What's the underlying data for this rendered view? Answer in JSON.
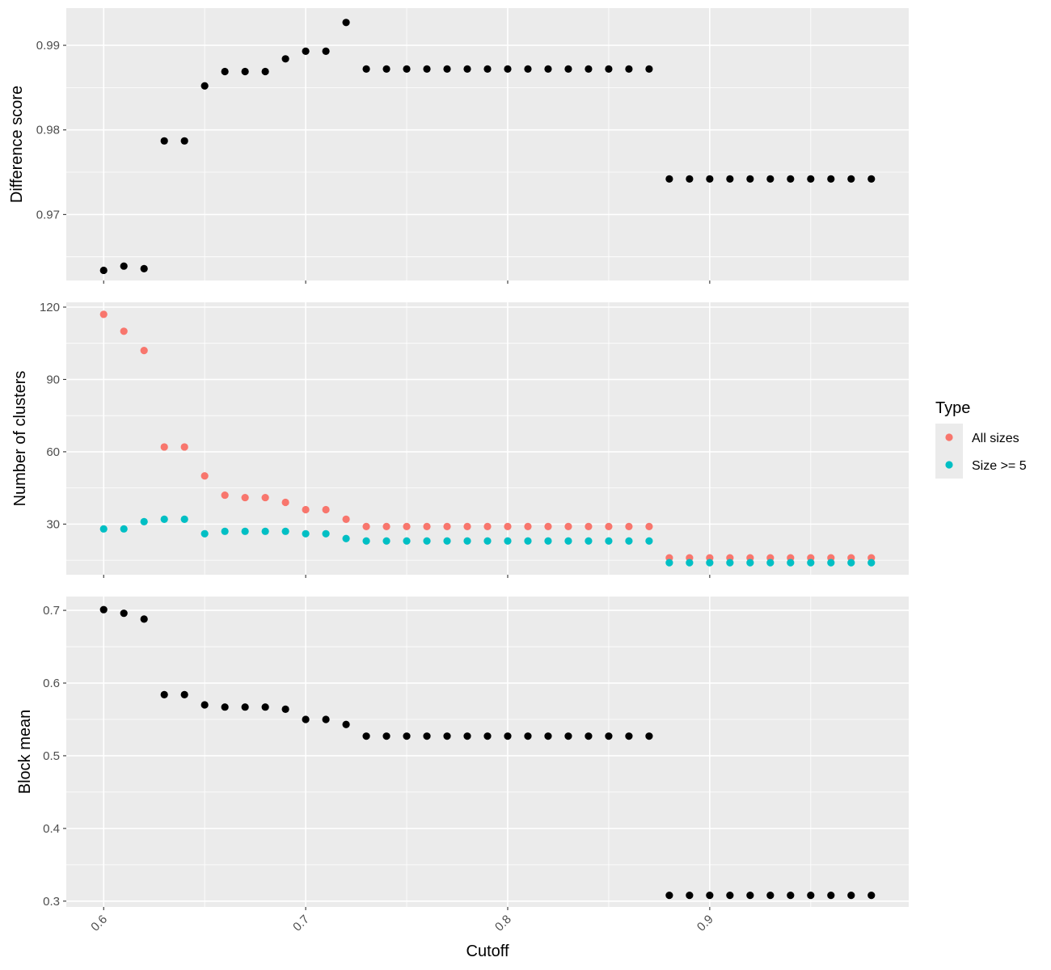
{
  "chart_data": {
    "type": "scatter",
    "xlabel": "Cutoff",
    "x": [
      0.6,
      0.61,
      0.62,
      0.63,
      0.64,
      0.65,
      0.66,
      0.67,
      0.68,
      0.69,
      0.7,
      0.71,
      0.72,
      0.73,
      0.74,
      0.75,
      0.76,
      0.77,
      0.78,
      0.79,
      0.8,
      0.81,
      0.82,
      0.83,
      0.84,
      0.85,
      0.86,
      0.87,
      0.88,
      0.89,
      0.9,
      0.91,
      0.92,
      0.93,
      0.94,
      0.95,
      0.96,
      0.97,
      0.98
    ],
    "xlim": [
      0.5815,
      0.9985
    ],
    "x_ticks": [
      0.6,
      0.7,
      0.8,
      0.9
    ],
    "x_tick_labels": [
      "0.6",
      "0.7",
      "0.8",
      "0.9"
    ],
    "grid": true,
    "legend": {
      "title": "Type",
      "position": "right",
      "items": [
        {
          "label": "All sizes",
          "color": "#F8766D"
        },
        {
          "label": "Size >= 5",
          "color": "#00BFC4"
        }
      ]
    },
    "panels": [
      {
        "ylabel": "Difference score",
        "ylim": [
          0.9622,
          0.9944
        ],
        "y_ticks": [
          0.97,
          0.98,
          0.99
        ],
        "y_tick_labels": [
          "0.97",
          "0.98",
          "0.99"
        ],
        "series": [
          {
            "color": "#000000",
            "values": [
              0.9634,
              0.9639,
              0.9636,
              0.9787,
              0.9787,
              0.9852,
              0.9869,
              0.9869,
              0.9869,
              0.9884,
              0.9893,
              0.9893,
              0.9927,
              0.9872,
              0.9872,
              0.9872,
              0.9872,
              0.9872,
              0.9872,
              0.9872,
              0.9872,
              0.9872,
              0.9872,
              0.9872,
              0.9872,
              0.9872,
              0.9872,
              0.9872,
              0.9742,
              0.9742,
              0.9742,
              0.9742,
              0.9742,
              0.9742,
              0.9742,
              0.9742,
              0.9742,
              0.9742,
              0.9742
            ]
          }
        ]
      },
      {
        "ylabel": "Number of clusters",
        "ylim": [
          9,
          122
        ],
        "y_ticks": [
          30,
          60,
          90,
          120
        ],
        "y_tick_labels": [
          "30",
          "60",
          "90",
          "120"
        ],
        "series": [
          {
            "name": "All sizes",
            "color": "#F8766D",
            "values": [
              117,
              110,
              102,
              62,
              62,
              50,
              42,
              41,
              41,
              39,
              36,
              36,
              32,
              29,
              29,
              29,
              29,
              29,
              29,
              29,
              29,
              29,
              29,
              29,
              29,
              29,
              29,
              29,
              16,
              16,
              16,
              16,
              16,
              16,
              16,
              16,
              16,
              16,
              16
            ]
          },
          {
            "name": "Size >= 5",
            "color": "#00BFC4",
            "values": [
              28,
              28,
              31,
              32,
              32,
              26,
              27,
              27,
              27,
              27,
              26,
              26,
              24,
              23,
              23,
              23,
              23,
              23,
              23,
              23,
              23,
              23,
              23,
              23,
              23,
              23,
              23,
              23,
              14,
              14,
              14,
              14,
              14,
              14,
              14,
              14,
              14,
              14,
              14
            ]
          }
        ]
      },
      {
        "ylabel": "Block mean",
        "ylim": [
          0.292,
          0.719
        ],
        "y_ticks": [
          0.3,
          0.4,
          0.5,
          0.6,
          0.7
        ],
        "y_tick_labels": [
          "0.3",
          "0.4",
          "0.5",
          "0.6",
          "0.7"
        ],
        "series": [
          {
            "color": "#000000",
            "values": [
              0.701,
              0.696,
              0.688,
              0.584,
              0.584,
              0.57,
              0.567,
              0.567,
              0.567,
              0.564,
              0.55,
              0.55,
              0.543,
              0.527,
              0.527,
              0.527,
              0.527,
              0.527,
              0.527,
              0.527,
              0.527,
              0.527,
              0.527,
              0.527,
              0.527,
              0.527,
              0.527,
              0.527,
              0.308,
              0.308,
              0.308,
              0.308,
              0.308,
              0.308,
              0.308,
              0.308,
              0.308,
              0.308,
              0.308
            ]
          }
        ]
      }
    ]
  }
}
